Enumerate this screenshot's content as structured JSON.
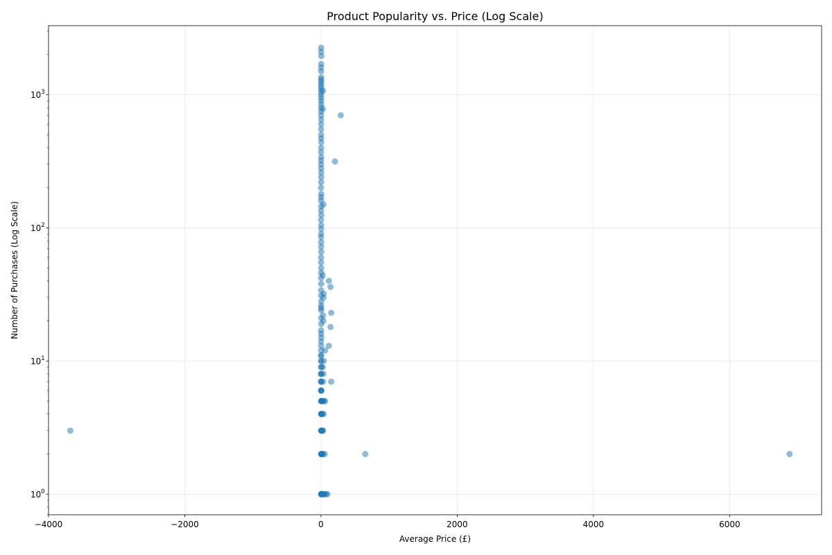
{
  "chart_data": {
    "type": "scatter",
    "title": "Product Popularity vs. Price (Log Scale)",
    "xlabel": "Average Price (£)",
    "ylabel": "Number of Purchases (Log Scale)",
    "xlim": [
      -4000,
      7350
    ],
    "ylim": [
      0.7,
      3300
    ],
    "yscale": "log",
    "grid": true,
    "legend": "none",
    "color": "#1f77b4",
    "alpha": 0.5,
    "x_ticks": [
      {
        "value": -4000,
        "label": "−4000"
      },
      {
        "value": -2000,
        "label": "−2000"
      },
      {
        "value": 0,
        "label": "0"
      },
      {
        "value": 2000,
        "label": "2000"
      },
      {
        "value": 4000,
        "label": "4000"
      },
      {
        "value": 6000,
        "label": "6000"
      }
    ],
    "y_ticks": [
      {
        "value": 1,
        "base": "10",
        "exponent": "0"
      },
      {
        "value": 10,
        "base": "10",
        "exponent": "1"
      },
      {
        "value": 100,
        "base": "10",
        "exponent": "2"
      },
      {
        "value": 1000,
        "base": "10",
        "exponent": "3"
      }
    ],
    "points": [
      [
        -3680,
        3
      ],
      [
        6880,
        2
      ],
      [
        650,
        2
      ],
      [
        2,
        2250
      ],
      [
        2,
        2100
      ],
      [
        5,
        1950
      ],
      [
        3,
        1700
      ],
      [
        1,
        1600
      ],
      [
        2,
        1500
      ],
      [
        3,
        1350
      ],
      [
        2,
        1300
      ],
      [
        5,
        1250
      ],
      [
        1,
        1200
      ],
      [
        2,
        1150
      ],
      [
        3,
        1100
      ],
      [
        30,
        1070
      ],
      [
        2,
        1050
      ],
      [
        1,
        1000
      ],
      [
        3,
        950
      ],
      [
        2,
        900
      ],
      [
        4,
        850
      ],
      [
        2,
        800
      ],
      [
        25,
        780
      ],
      [
        1,
        750
      ],
      [
        2,
        700
      ],
      [
        290,
        700
      ],
      [
        3,
        650
      ],
      [
        2,
        600
      ],
      [
        1,
        550
      ],
      [
        3,
        500
      ],
      [
        2,
        470
      ],
      [
        4,
        440
      ],
      [
        2,
        400
      ],
      [
        1,
        370
      ],
      [
        3,
        340
      ],
      [
        2,
        320
      ],
      [
        205,
        315
      ],
      [
        1,
        300
      ],
      [
        3,
        280
      ],
      [
        2,
        260
      ],
      [
        4,
        240
      ],
      [
        2,
        220
      ],
      [
        1,
        200
      ],
      [
        3,
        180
      ],
      [
        2,
        170
      ],
      [
        1,
        160
      ],
      [
        35,
        150
      ],
      [
        3,
        145
      ],
      [
        2,
        135
      ],
      [
        4,
        125
      ],
      [
        1,
        115
      ],
      [
        2,
        105
      ],
      [
        3,
        98
      ],
      [
        2,
        90
      ],
      [
        1,
        85
      ],
      [
        4,
        78
      ],
      [
        2,
        72
      ],
      [
        3,
        66
      ],
      [
        1,
        60
      ],
      [
        2,
        55
      ],
      [
        3,
        50
      ],
      [
        2,
        46
      ],
      [
        25,
        44
      ],
      [
        1,
        42
      ],
      [
        115,
        40
      ],
      [
        3,
        38
      ],
      [
        140,
        36
      ],
      [
        2,
        34
      ],
      [
        40,
        32
      ],
      [
        1,
        31
      ],
      [
        35,
        30
      ],
      [
        3,
        28
      ],
      [
        2,
        26
      ],
      [
        1,
        25
      ],
      [
        3,
        24
      ],
      [
        150,
        23
      ],
      [
        30,
        22
      ],
      [
        2,
        21
      ],
      [
        35,
        20
      ],
      [
        3,
        19
      ],
      [
        140,
        18
      ],
      [
        1,
        17
      ],
      [
        2,
        16
      ],
      [
        4,
        15
      ],
      [
        1,
        14
      ],
      [
        115,
        13
      ],
      [
        2,
        13
      ],
      [
        60,
        12
      ],
      [
        3,
        12
      ],
      [
        1,
        11
      ],
      [
        2,
        11
      ],
      [
        40,
        10
      ],
      [
        3,
        10
      ],
      [
        1,
        10
      ],
      [
        2,
        9
      ],
      [
        3,
        9
      ],
      [
        25,
        9
      ],
      [
        1,
        8
      ],
      [
        2,
        8
      ],
      [
        35,
        8
      ],
      [
        3,
        8
      ],
      [
        1,
        7
      ],
      [
        2,
        7
      ],
      [
        3,
        7
      ],
      [
        30,
        7
      ],
      [
        150,
        7
      ],
      [
        1,
        6
      ],
      [
        2,
        6
      ],
      [
        3,
        6
      ],
      [
        5,
        6
      ],
      [
        1,
        5
      ],
      [
        3,
        5
      ],
      [
        8,
        5
      ],
      [
        12,
        5
      ],
      [
        18,
        5
      ],
      [
        25,
        5
      ],
      [
        45,
        5
      ],
      [
        60,
        5
      ],
      [
        1,
        4
      ],
      [
        3,
        4
      ],
      [
        6,
        4
      ],
      [
        12,
        4
      ],
      [
        20,
        4
      ],
      [
        40,
        4
      ],
      [
        1,
        3
      ],
      [
        4,
        3
      ],
      [
        8,
        3
      ],
      [
        15,
        3
      ],
      [
        22,
        3
      ],
      [
        30,
        3
      ],
      [
        1,
        2
      ],
      [
        3,
        2
      ],
      [
        6,
        2
      ],
      [
        10,
        2
      ],
      [
        18,
        2
      ],
      [
        30,
        2
      ],
      [
        55,
        2
      ],
      [
        1,
        1
      ],
      [
        3,
        1
      ],
      [
        6,
        1
      ],
      [
        9,
        1
      ],
      [
        14,
        1
      ],
      [
        20,
        1
      ],
      [
        28,
        1
      ],
      [
        40,
        1
      ],
      [
        55,
        1
      ],
      [
        75,
        1
      ],
      [
        95,
        1
      ]
    ]
  }
}
